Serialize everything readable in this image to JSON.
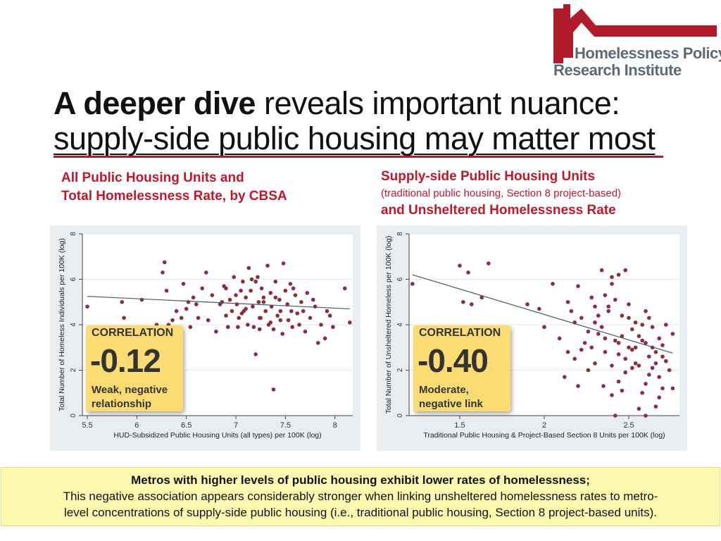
{
  "logo": {
    "line1": "Homelessness Policy",
    "line2": "Research Institute",
    "color": "#b01c2c"
  },
  "title": {
    "bold": "A deeper dive",
    "rest": " reveals important nuance:",
    "line2": "supply-side public housing may matter most"
  },
  "left": {
    "caption1": "All Public Housing Units and",
    "caption2": "Total Homelessness Rate, by CBSA",
    "correlation": {
      "label": "CORRELATION",
      "value": "-0.12",
      "desc1": "Weak, negative",
      "desc2": "relationship"
    }
  },
  "right": {
    "caption1": "Supply-side Public Housing Units",
    "caption2": "(traditional public housing, Section 8 project-based)",
    "caption3": "and Unsheltered Homelessness Rate",
    "correlation": {
      "label": "CORRELATION",
      "value": "-0.40",
      "desc1": "Moderate,",
      "desc2": "negative link"
    }
  },
  "note": {
    "heading": "Metros with higher levels of public housing exhibit lower rates of homelessness;",
    "line1": "This negative association appears considerably stronger when linking unsheltered homelessness rates to metro-",
    "line2": "level concentrations of supply-side public housing (i.e., traditional public housing, Section 8 project-based units)."
  },
  "chart_data": [
    {
      "type": "scatter",
      "xlabel": "HUD-Subsidized Public Housing Units (all types) per 100K (log)",
      "ylabel": "Total Number of Homeless Individuals per 100K (log)",
      "xlim": [
        5.45,
        8.18
      ],
      "ylim": [
        0,
        8
      ],
      "xticks": [
        "5.5",
        "6",
        "6.5",
        "7",
        "7.5",
        "8"
      ],
      "yticks": [
        "0",
        "2",
        "4",
        "6",
        "8"
      ],
      "grid": true,
      "point_color": "#8b2e3a",
      "fit_line": {
        "x": [
          5.5,
          8.15
        ],
        "y": [
          5.25,
          4.7
        ]
      },
      "points": [
        [
          5.5,
          4.8
        ],
        [
          5.85,
          5.0
        ],
        [
          5.87,
          4.3
        ],
        [
          6.05,
          5.1
        ],
        [
          6.2,
          4.0
        ],
        [
          6.26,
          6.3
        ],
        [
          6.28,
          6.75
        ],
        [
          6.3,
          5.5
        ],
        [
          6.32,
          4.0
        ],
        [
          6.36,
          4.2
        ],
        [
          6.4,
          4.6
        ],
        [
          6.45,
          4.3
        ],
        [
          6.47,
          5.8
        ],
        [
          6.5,
          4.7
        ],
        [
          6.52,
          5.0
        ],
        [
          6.54,
          3.9
        ],
        [
          6.57,
          5.2
        ],
        [
          6.6,
          4.9
        ],
        [
          6.62,
          4.3
        ],
        [
          6.66,
          5.6
        ],
        [
          6.7,
          6.3
        ],
        [
          6.72,
          4.2
        ],
        [
          6.76,
          5.3
        ],
        [
          6.8,
          3.7
        ],
        [
          6.84,
          4.9
        ],
        [
          6.88,
          5.7
        ],
        [
          6.9,
          4.4
        ],
        [
          6.92,
          3.9
        ],
        [
          6.94,
          5.1
        ],
        [
          6.96,
          4.6
        ],
        [
          6.98,
          6.1
        ],
        [
          7.0,
          5.3
        ],
        [
          7.01,
          4.9
        ],
        [
          7.03,
          4.3
        ],
        [
          7.05,
          5.5
        ],
        [
          7.07,
          5.9
        ],
        [
          7.08,
          4.6
        ],
        [
          7.1,
          5.2
        ],
        [
          7.12,
          4.0
        ],
        [
          7.13,
          6.5
        ],
        [
          7.15,
          5.5
        ],
        [
          7.17,
          4.8
        ],
        [
          7.18,
          3.9
        ],
        [
          7.2,
          5.9
        ],
        [
          7.22,
          6.1
        ],
        [
          7.23,
          5.0
        ],
        [
          7.25,
          4.3
        ],
        [
          7.26,
          5.6
        ],
        [
          7.28,
          5.2
        ],
        [
          7.3,
          4.6
        ],
        [
          7.32,
          6.6
        ],
        [
          7.33,
          4.0
        ],
        [
          7.35,
          5.4
        ],
        [
          7.36,
          4.8
        ],
        [
          7.38,
          3.8
        ],
        [
          7.4,
          5.9
        ],
        [
          7.42,
          4.4
        ],
        [
          7.44,
          5.1
        ],
        [
          7.45,
          4.6
        ],
        [
          7.47,
          3.6
        ],
        [
          7.48,
          6.7
        ],
        [
          7.5,
          5.5
        ],
        [
          7.52,
          4.9
        ],
        [
          7.53,
          4.2
        ],
        [
          7.55,
          5.8
        ],
        [
          7.57,
          3.9
        ],
        [
          7.6,
          5.3
        ],
        [
          7.62,
          4.5
        ],
        [
          7.64,
          4.0
        ],
        [
          7.66,
          5.0
        ],
        [
          7.68,
          4.6
        ],
        [
          7.7,
          3.7
        ],
        [
          7.72,
          5.4
        ],
        [
          7.75,
          4.3
        ],
        [
          7.78,
          5.1
        ],
        [
          7.8,
          4.8
        ],
        [
          7.83,
          3.2
        ],
        [
          7.86,
          4.0
        ],
        [
          7.9,
          3.4
        ],
        [
          7.92,
          4.6
        ],
        [
          7.95,
          4.4
        ],
        [
          7.98,
          3.9
        ],
        [
          8.1,
          5.6
        ],
        [
          8.15,
          4.1
        ],
        [
          7.2,
          2.7
        ],
        [
          7.38,
          1.15
        ],
        [
          6.9,
          5.6
        ],
        [
          7.1,
          4.7
        ],
        [
          7.24,
          4.3
        ],
        [
          7.35,
          4.1
        ],
        [
          7.45,
          4.2
        ],
        [
          7.56,
          4.6
        ],
        [
          7.16,
          6.0
        ],
        [
          7.28,
          5.0
        ],
        [
          7.06,
          4.5
        ],
        [
          7.4,
          5.2
        ],
        [
          7.58,
          5.6
        ],
        [
          7.02,
          3.9
        ],
        [
          6.86,
          5.0
        ],
        [
          7.24,
          3.8
        ]
      ]
    },
    {
      "type": "scatter",
      "xlabel": "Traditional Public Housing & Project-Based Section 8 Units per 100K (log)",
      "ylabel": "Total Number of Unsheltered Homeless per 100K (log)",
      "xlim": [
        1.2,
        2.8
      ],
      "ylim": [
        0,
        8
      ],
      "xticks": [
        "1.5",
        "2",
        "2.5"
      ],
      "yticks": [
        "0",
        "2",
        "4",
        "6",
        "8"
      ],
      "grid": true,
      "point_color": "#8b2e3a",
      "fit_line": {
        "x": [
          1.22,
          2.76
        ],
        "y": [
          6.2,
          2.75
        ]
      },
      "points": [
        [
          1.22,
          5.8
        ],
        [
          1.5,
          6.6
        ],
        [
          1.55,
          6.3
        ],
        [
          1.52,
          5.0
        ],
        [
          1.57,
          4.9
        ],
        [
          1.63,
          5.2
        ],
        [
          1.67,
          6.7
        ],
        [
          1.72,
          1.6
        ],
        [
          1.9,
          4.9
        ],
        [
          1.97,
          4.7
        ],
        [
          2.0,
          3.9
        ],
        [
          2.05,
          5.8
        ],
        [
          2.09,
          3.4
        ],
        [
          2.12,
          1.7
        ],
        [
          2.14,
          5.0
        ],
        [
          2.16,
          4.6
        ],
        [
          2.18,
          2.5
        ],
        [
          2.2,
          5.7
        ],
        [
          2.22,
          4.3
        ],
        [
          2.24,
          3.2
        ],
        [
          2.26,
          2.0
        ],
        [
          2.28,
          5.2
        ],
        [
          2.3,
          4.1
        ],
        [
          2.32,
          3.6
        ],
        [
          2.34,
          6.4
        ],
        [
          2.36,
          2.8
        ],
        [
          2.38,
          4.8
        ],
        [
          2.4,
          5.8
        ],
        [
          2.42,
          3.3
        ],
        [
          2.44,
          1.5
        ],
        [
          2.46,
          4.4
        ],
        [
          2.48,
          6.4
        ],
        [
          2.5,
          3.0
        ],
        [
          2.52,
          2.1
        ],
        [
          2.54,
          4.1
        ],
        [
          2.56,
          3.5
        ],
        [
          2.58,
          1.0
        ],
        [
          2.6,
          4.6
        ],
        [
          2.62,
          2.6
        ],
        [
          2.64,
          3.9
        ],
        [
          2.66,
          2.3
        ],
        [
          2.68,
          0.8
        ],
        [
          2.7,
          3.1
        ],
        [
          2.72,
          4.0
        ],
        [
          2.74,
          2.0
        ],
        [
          2.76,
          3.6
        ],
        [
          2.3,
          2.3
        ],
        [
          2.35,
          1.3
        ],
        [
          2.4,
          0.9
        ],
        [
          2.44,
          2.7
        ],
        [
          2.48,
          1.9
        ],
        [
          2.52,
          2.9
        ],
        [
          2.56,
          0.3
        ],
        [
          2.6,
          1.4
        ],
        [
          2.64,
          3.0
        ],
        [
          2.68,
          1.7
        ],
        [
          2.72,
          2.4
        ],
        [
          2.34,
          3.9
        ],
        [
          2.38,
          4.6
        ],
        [
          2.42,
          5.1
        ],
        [
          2.46,
          3.5
        ],
        [
          2.5,
          4.9
        ],
        [
          2.54,
          2.3
        ],
        [
          2.58,
          3.3
        ],
        [
          2.62,
          4.3
        ],
        [
          2.66,
          2.8
        ],
        [
          2.7,
          1.2
        ],
        [
          2.28,
          3.0
        ],
        [
          2.32,
          4.4
        ],
        [
          2.44,
          3.2
        ],
        [
          2.48,
          2.5
        ],
        [
          2.52,
          3.8
        ],
        [
          2.56,
          2.2
        ],
        [
          2.6,
          3.2
        ],
        [
          2.64,
          2.1
        ],
        [
          2.68,
          3.4
        ],
        [
          2.36,
          3.4
        ],
        [
          2.4,
          2.2
        ],
        [
          2.46,
          1.1
        ],
        [
          2.3,
          4.8
        ],
        [
          2.26,
          3.7
        ],
        [
          2.22,
          2.9
        ],
        [
          2.2,
          1.3
        ],
        [
          2.18,
          4.1
        ],
        [
          2.14,
          2.8
        ],
        [
          2.5,
          4.3
        ],
        [
          2.54,
          3.0
        ],
        [
          2.58,
          4.0
        ],
        [
          2.62,
          1.8
        ],
        [
          2.66,
          0.4
        ],
        [
          2.7,
          2.6
        ],
        [
          2.6,
          0.0
        ],
        [
          2.42,
          0.0
        ],
        [
          2.76,
          1.2
        ],
        [
          2.36,
          5.3
        ],
        [
          2.4,
          6.1
        ],
        [
          2.44,
          6.2
        ]
      ]
    }
  ]
}
